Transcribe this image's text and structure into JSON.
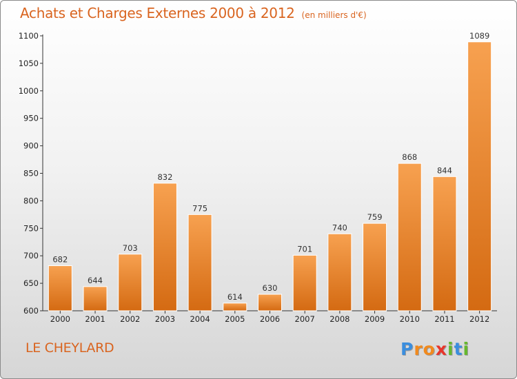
{
  "title": "Achats et Charges Externes 2000 à 2012",
  "subtitle": "(en milliers d'€)",
  "location": "LE CHEYLARD",
  "logo": {
    "letters": [
      "P",
      "r",
      "o",
      "x",
      "i",
      "t",
      "i"
    ],
    "colors": [
      "#3b8ede",
      "#f18a1e",
      "#f18a1e",
      "#e8352b",
      "#66b82e",
      "#3b8ede",
      "#66b82e"
    ]
  },
  "chart_data": {
    "type": "bar",
    "categories": [
      "2000",
      "2001",
      "2002",
      "2003",
      "2004",
      "2005",
      "2006",
      "2007",
      "2008",
      "2009",
      "2010",
      "2011",
      "2012"
    ],
    "values": [
      682,
      644,
      703,
      832,
      775,
      614,
      630,
      701,
      740,
      759,
      868,
      844,
      1089
    ],
    "title": "Achats et Charges Externes 2000 à 2012",
    "subtitle": "(en milliers d'€)",
    "ylim": [
      600,
      1100
    ],
    "yticks": [
      600,
      650,
      700,
      750,
      800,
      850,
      900,
      950,
      1000,
      1050,
      1100
    ],
    "grid": false,
    "bar_color": "#f0882d"
  }
}
